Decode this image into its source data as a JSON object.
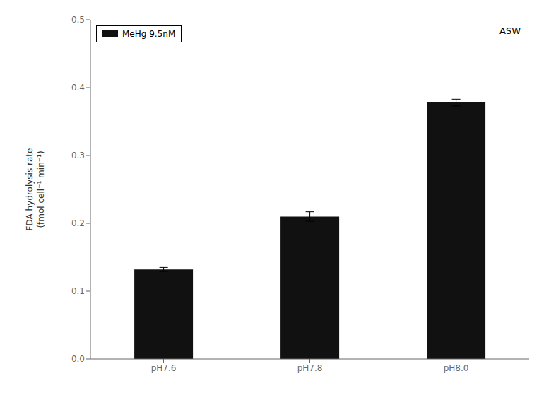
{
  "chart_data": {
    "type": "bar",
    "categories": [
      "pH7.6",
      "pH7.8",
      "pH8.0"
    ],
    "series": [
      {
        "name": "MeHg 9.5nM",
        "color": "#111111",
        "values": [
          0.132,
          0.21,
          0.378
        ],
        "errors": [
          0.003,
          0.007,
          0.005
        ]
      }
    ],
    "ylabel": "FDA hydrolysis rate\n(fmol cell⁻¹ min⁻¹)",
    "ylim": [
      0,
      0.5
    ],
    "yticks": [
      {
        "value": 0.0,
        "label": "0.0"
      },
      0.1,
      0.2,
      0.3,
      0.4,
      0.5
    ],
    "annotation": "ASW",
    "legend": "upper left",
    "grid": false
  }
}
